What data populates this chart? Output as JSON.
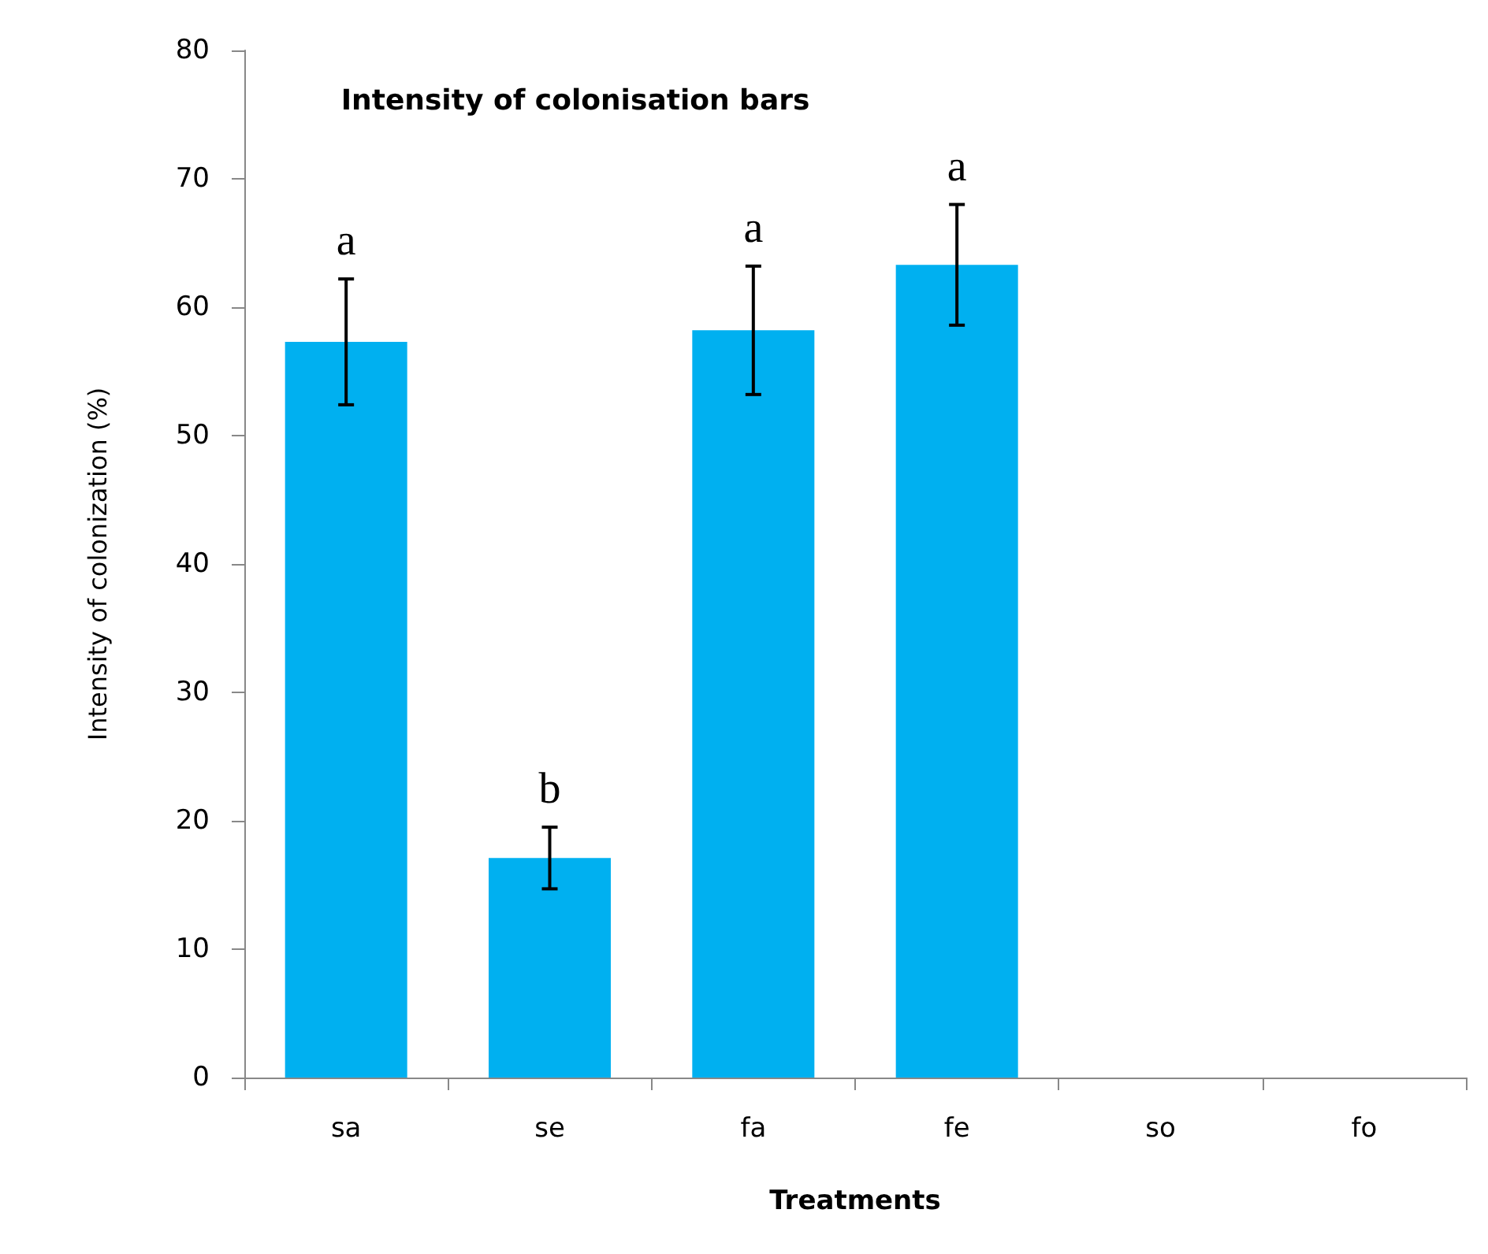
{
  "chart_data": {
    "type": "bar",
    "title": "Intensity of colonisation bars",
    "xlabel": "Treatments",
    "ylabel": "Intensity of colonization (%)",
    "categories": [
      "sa",
      "se",
      "fa",
      "fe",
      "so",
      "fo"
    ],
    "values": [
      57.3,
      17.1,
      58.2,
      63.3,
      0,
      0
    ],
    "errors": [
      4.9,
      2.4,
      5.0,
      4.7,
      null,
      null
    ],
    "color": "#00b0f0",
    "ylim": [
      0,
      80
    ],
    "yticks": [
      0,
      10,
      20,
      30,
      40,
      50,
      60,
      70,
      80
    ],
    "grid": false,
    "annotations": [
      "a",
      "b",
      "a",
      "a"
    ]
  }
}
